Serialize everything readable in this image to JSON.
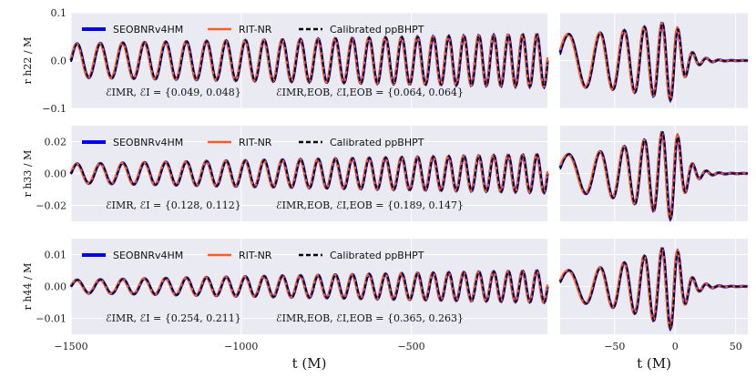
{
  "chart_data": {
    "type": "line",
    "xlabel_left": "t (M)",
    "xlabel_right": "t (M)",
    "left_xlim": [
      -1500,
      -100
    ],
    "left_xticks": [
      -1500,
      -1000,
      -500
    ],
    "left_xtick_labels": [
      "−1500",
      "−1000",
      "−500"
    ],
    "right_xlim": [
      -95,
      60
    ],
    "right_xticks": [
      -50,
      0,
      50
    ],
    "right_xtick_labels": [
      "−50",
      "0",
      "50"
    ],
    "grid": true,
    "legend_placement": "top-left",
    "series": [
      {
        "name": "SEOBNRv4HM",
        "color": "#0000ee",
        "style": "solid"
      },
      {
        "name": "RIT-NR",
        "color": "#ff5a1f",
        "style": "solid"
      },
      {
        "name": "Calibrated ppBHPT",
        "color": "#000000",
        "style": "dashed"
      }
    ],
    "rows": [
      {
        "ylabel": "r h22 / M",
        "ylim": [
          -0.1,
          0.1
        ],
        "yticks": [
          -0.1,
          0.0,
          0.1
        ],
        "ytick_labels": [
          "−0.1",
          "0.0",
          "0.1"
        ],
        "amplitude_inspiral": [
          0.035,
          0.055
        ],
        "peak_amplitude": 0.085,
        "annotation_left": "ℰIMR, ℰI = {0.049, 0.048}",
        "annotation_right": "ℰIMR,EOB, ℰI,EOB = {0.064, 0.064}"
      },
      {
        "ylabel": "r h33 / M",
        "ylim": [
          -0.03,
          0.03
        ],
        "yticks": [
          -0.02,
          0.0,
          0.02
        ],
        "ytick_labels": [
          "−0.02",
          "0.00",
          "0.02"
        ],
        "amplitude_inspiral": [
          0.006,
          0.012
        ],
        "peak_amplitude": 0.03,
        "annotation_left": "ℰIMR, ℰI = {0.128, 0.112}",
        "annotation_right": "ℰIMR,EOB, ℰI,EOB = {0.189, 0.147}"
      },
      {
        "ylabel": "r h44 / M",
        "ylim": [
          -0.015,
          0.015
        ],
        "yticks": [
          -0.01,
          0.0,
          0.01
        ],
        "ytick_labels": [
          "−0.01",
          "0.00",
          "0.01"
        ],
        "amplitude_inspiral": [
          0.002,
          0.005
        ],
        "peak_amplitude": 0.014,
        "annotation_left": "ℰIMR, ℰI = {0.254, 0.211}",
        "annotation_right": "ℰIMR,EOB, ℰI,EOB = {0.365, 0.263}"
      }
    ]
  }
}
